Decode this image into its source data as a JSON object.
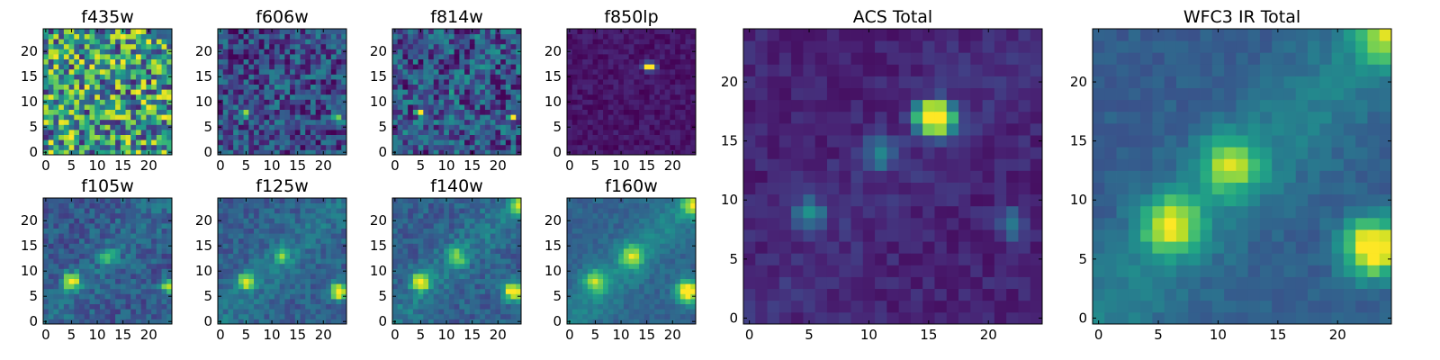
{
  "chart_data": [
    {
      "title": "f435w",
      "type": "heatmap",
      "xticks": [
        0,
        5,
        10,
        15,
        20
      ],
      "yticks": [
        0,
        5,
        10,
        15,
        20
      ],
      "xlim": [
        -0.5,
        24.5
      ],
      "ylim": [
        -0.5,
        24.5
      ],
      "colormap": "viridis",
      "features": [
        {
          "x": 8,
          "y": 15,
          "intensity": 0.8
        },
        {
          "x": 5,
          "y": 3,
          "intensity": 0.9
        },
        {
          "x": 23,
          "y": 7,
          "intensity": 0.7
        },
        {
          "x": 13,
          "y": 18,
          "intensity": 0.7
        }
      ]
    },
    {
      "title": "f606w",
      "type": "heatmap",
      "xticks": [
        0,
        5,
        10,
        15,
        20
      ],
      "yticks": [
        0,
        5,
        10,
        15,
        20
      ],
      "xlim": [
        -0.5,
        24.5
      ],
      "ylim": [
        -0.5,
        24.5
      ],
      "colormap": "viridis",
      "features": [
        {
          "x": 5,
          "y": 8,
          "intensity": 0.55
        },
        {
          "x": 23,
          "y": 7,
          "intensity": 0.85
        },
        {
          "x": 11,
          "y": 13,
          "intensity": 0.45
        }
      ]
    },
    {
      "title": "f814w",
      "type": "heatmap",
      "xticks": [
        0,
        5,
        10,
        15,
        20
      ],
      "yticks": [
        0,
        5,
        10,
        15,
        20
      ],
      "xlim": [
        -0.5,
        24.5
      ],
      "ylim": [
        -0.5,
        24.5
      ],
      "colormap": "viridis",
      "features": [
        {
          "x": 5,
          "y": 8,
          "intensity": 0.9
        },
        {
          "x": 23,
          "y": 7,
          "intensity": 0.75
        },
        {
          "x": 11,
          "y": 13,
          "intensity": 0.45
        }
      ]
    },
    {
      "title": "f850lp",
      "type": "heatmap",
      "xticks": [
        0,
        5,
        10,
        15,
        20
      ],
      "yticks": [
        0,
        5,
        10,
        15,
        20
      ],
      "xlim": [
        -0.5,
        24.5
      ],
      "ylim": [
        -0.5,
        24.5
      ],
      "colormap": "viridis",
      "features": [
        {
          "x": 15,
          "y": 17,
          "intensity": 1.0
        },
        {
          "x": 16,
          "y": 17,
          "intensity": 1.0
        }
      ]
    },
    {
      "title": "f105w",
      "type": "heatmap",
      "xticks": [
        0,
        5,
        10,
        15,
        20
      ],
      "yticks": [
        0,
        5,
        10,
        15,
        20
      ],
      "xlim": [
        -0.5,
        24.5
      ],
      "ylim": [
        -0.5,
        24.5
      ],
      "colormap": "viridis",
      "features": [
        {
          "x": 5,
          "y": 8,
          "intensity": 1.0
        },
        {
          "x": 24,
          "y": 7,
          "intensity": 0.75
        },
        {
          "x": 12,
          "y": 13,
          "intensity": 0.5
        }
      ]
    },
    {
      "title": "f125w",
      "type": "heatmap",
      "xticks": [
        0,
        5,
        10,
        15,
        20
      ],
      "yticks": [
        0,
        5,
        10,
        15,
        20
      ],
      "xlim": [
        -0.5,
        24.5
      ],
      "ylim": [
        -0.5,
        24.5
      ],
      "colormap": "viridis",
      "features": [
        {
          "x": 5,
          "y": 8,
          "intensity": 0.8
        },
        {
          "x": 23,
          "y": 6,
          "intensity": 1.0
        },
        {
          "x": 12,
          "y": 13,
          "intensity": 0.5
        }
      ]
    },
    {
      "title": "f140w",
      "type": "heatmap",
      "xticks": [
        0,
        5,
        10,
        15,
        20
      ],
      "yticks": [
        0,
        5,
        10,
        15,
        20
      ],
      "xlim": [
        -0.5,
        24.5
      ],
      "ylim": [
        -0.5,
        24.5
      ],
      "colormap": "viridis",
      "features": [
        {
          "x": 5,
          "y": 8,
          "intensity": 0.85
        },
        {
          "x": 23,
          "y": 6,
          "intensity": 1.0
        },
        {
          "x": 12,
          "y": 13,
          "intensity": 0.55
        },
        {
          "x": 24,
          "y": 23,
          "intensity": 0.7
        }
      ]
    },
    {
      "title": "f160w",
      "type": "heatmap",
      "xticks": [
        0,
        5,
        10,
        15,
        20
      ],
      "yticks": [
        0,
        5,
        10,
        15,
        20
      ],
      "xlim": [
        -0.5,
        24.5
      ],
      "ylim": [
        -0.5,
        24.5
      ],
      "colormap": "viridis",
      "features": [
        {
          "x": 5,
          "y": 8,
          "intensity": 0.6
        },
        {
          "x": 23,
          "y": 6,
          "intensity": 1.0
        },
        {
          "x": 12,
          "y": 13,
          "intensity": 0.6
        },
        {
          "x": 24,
          "y": 23,
          "intensity": 0.6
        }
      ]
    },
    {
      "title": "ACS Total",
      "type": "heatmap",
      "xticks": [
        0,
        5,
        10,
        15,
        20
      ],
      "yticks": [
        0,
        5,
        10,
        15,
        20
      ],
      "xlim": [
        -0.5,
        24.5
      ],
      "ylim": [
        -0.5,
        24.5
      ],
      "colormap": "viridis",
      "features": [
        {
          "x": 15,
          "y": 17,
          "intensity": 1.0
        },
        {
          "x": 16,
          "y": 17,
          "intensity": 1.0
        },
        {
          "x": 5,
          "y": 9,
          "intensity": 0.45
        },
        {
          "x": 11,
          "y": 14,
          "intensity": 0.4
        },
        {
          "x": 22,
          "y": 8,
          "intensity": 0.35
        }
      ]
    },
    {
      "title": "WFC3 IR Total",
      "type": "heatmap",
      "xticks": [
        0,
        5,
        10,
        15,
        20
      ],
      "yticks": [
        0,
        5,
        10,
        15,
        20
      ],
      "xlim": [
        -0.5,
        24.5
      ],
      "ylim": [
        -0.5,
        24.5
      ],
      "colormap": "viridis",
      "features": [
        {
          "x": 6,
          "y": 8,
          "intensity": 0.7
        },
        {
          "x": 23,
          "y": 6,
          "intensity": 1.0
        },
        {
          "x": 11,
          "y": 13,
          "intensity": 0.6
        },
        {
          "x": 24,
          "y": 24,
          "intensity": 0.6
        }
      ]
    }
  ]
}
